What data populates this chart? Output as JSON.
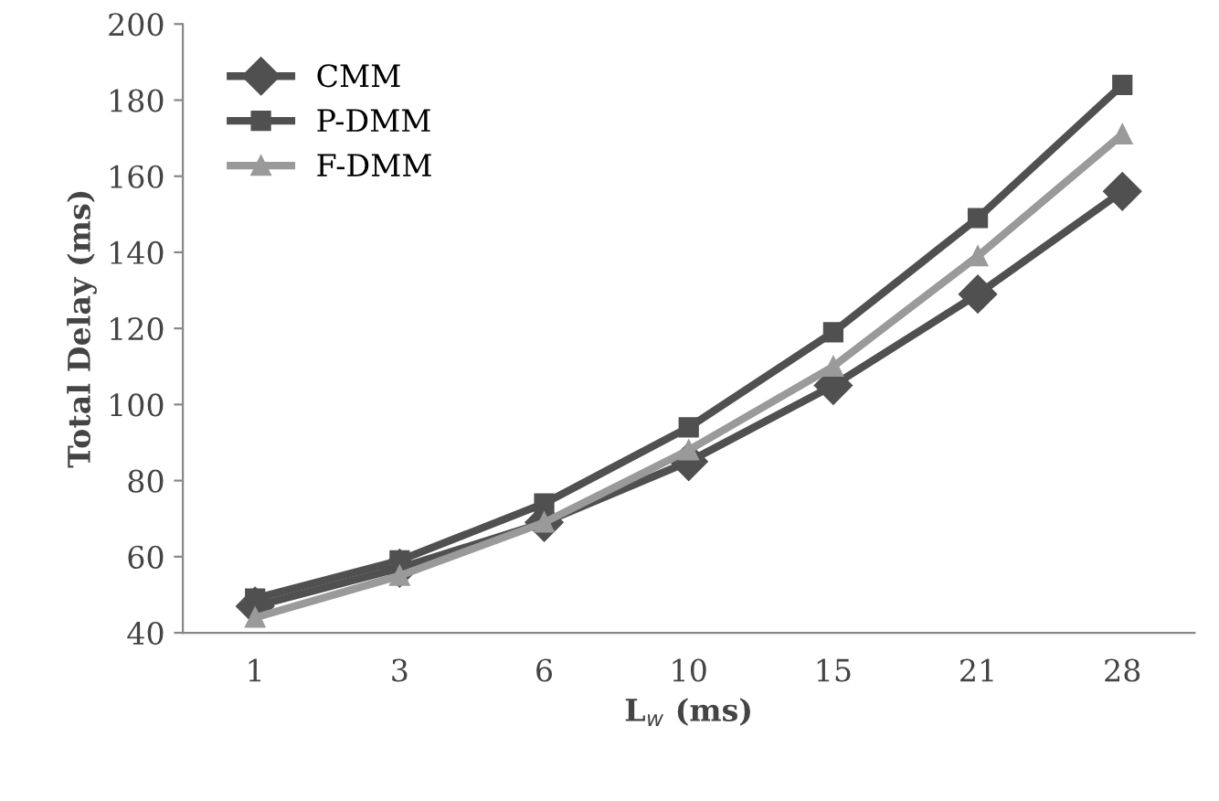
{
  "chart_data": {
    "type": "line",
    "xlabel": "L$_{w}$ (ms)",
    "ylabel": "Total Delay (ms)",
    "categories": [
      "1",
      "3",
      "6",
      "10",
      "15",
      "21",
      "28"
    ],
    "series": [
      {
        "name": "CMM",
        "color": "#505050",
        "marker": "diamond",
        "values": [
          47,
          57,
          69,
          85,
          105,
          129,
          156
        ]
      },
      {
        "name": "P-DMM",
        "color": "#505050",
        "marker": "square",
        "values": [
          49,
          59,
          74,
          94,
          119,
          149,
          184
        ]
      },
      {
        "name": "F-DMM",
        "color": "#9a9a9a",
        "marker": "triangle",
        "values": [
          44,
          55,
          69,
          88,
          110,
          139,
          171
        ]
      }
    ],
    "ylim": [
      40,
      200
    ],
    "yticks": [
      40,
      60,
      80,
      100,
      120,
      140,
      160,
      180,
      200
    ],
    "grid": false,
    "legend": "top left"
  }
}
